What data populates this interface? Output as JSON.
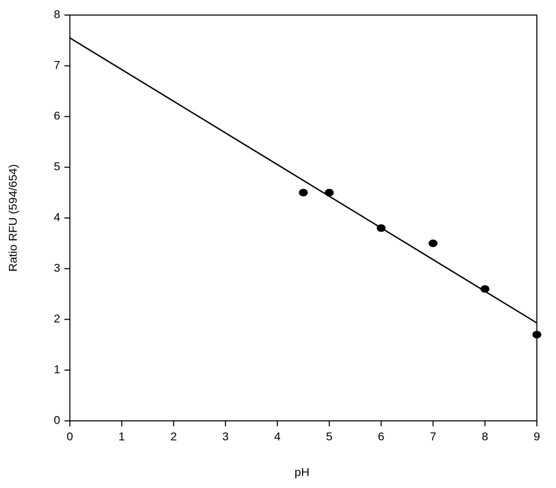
{
  "chart_data": {
    "type": "scatter",
    "x_label": "pH",
    "y_label": "Ratio RFU (594/654)",
    "series": [
      {
        "x": [
          4.5,
          5,
          6,
          7,
          8,
          9
        ],
        "values": [
          4.5,
          4.5,
          3.8,
          3.5,
          2.6,
          1.7
        ],
        "color": "#000000"
      }
    ],
    "trend": {
      "x": [
        0,
        9
      ],
      "values": [
        7.55,
        1.93
      ],
      "color": "#000000"
    },
    "xlim": [
      0,
      9
    ],
    "xticks": [
      0,
      1,
      2,
      3,
      4,
      5,
      6,
      7,
      8,
      9
    ],
    "ylim": [
      0,
      8
    ],
    "yticks": [
      0,
      1,
      2,
      3,
      4,
      5,
      6,
      7,
      8
    ],
    "grid": false
  }
}
